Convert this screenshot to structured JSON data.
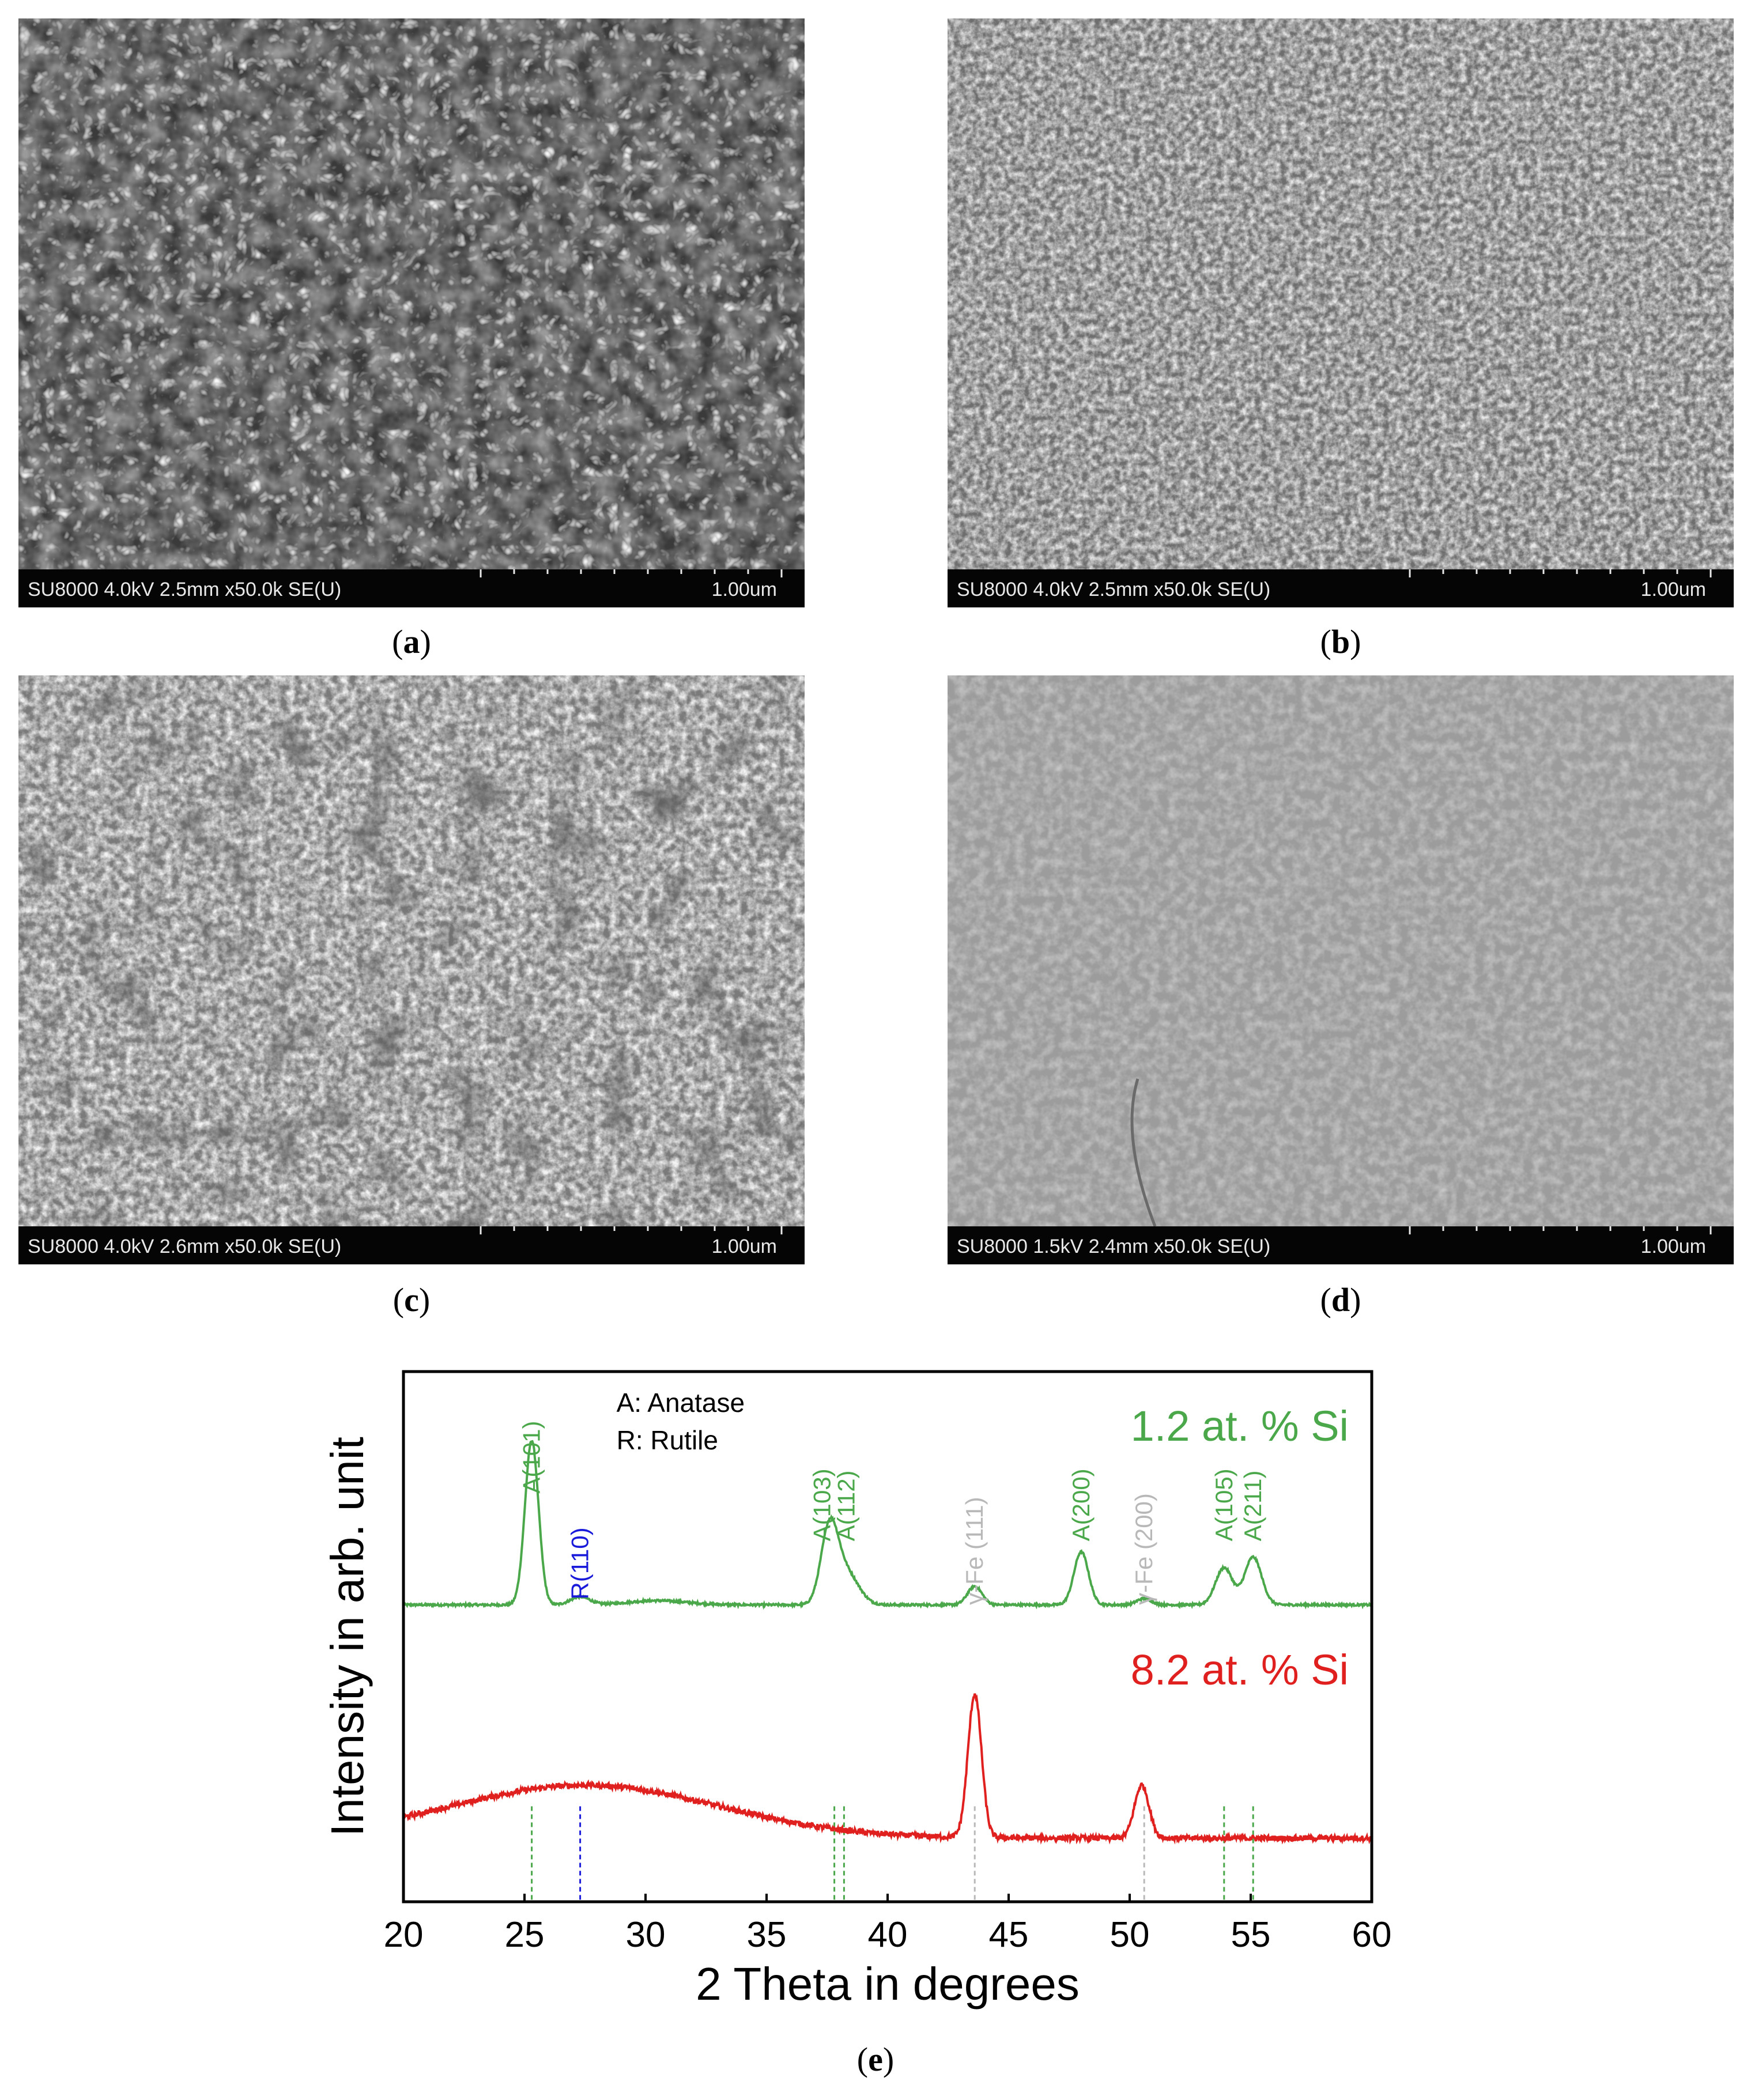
{
  "panels": [
    {
      "id": "a",
      "info": "SU8000 4.0kV 2.5mm x50.0k SE(U)",
      "scale": "1.00um",
      "caption_letter": "a"
    },
    {
      "id": "b",
      "info": "SU8000 4.0kV 2.5mm x50.0k SE(U)",
      "scale": "1.00um",
      "caption_letter": "b"
    },
    {
      "id": "c",
      "info": "SU8000 4.0kV 2.6mm x50.0k SE(U)",
      "scale": "1.00um",
      "caption_letter": "c"
    },
    {
      "id": "d",
      "info": "SU8000 1.5kV 2.4mm x50.0k SE(U)",
      "scale": "1.00um",
      "caption_letter": "d"
    }
  ],
  "caption_e": "e",
  "chart_data": {
    "type": "line",
    "xlabel": "2 Theta in degrees",
    "ylabel": "Intensity in arb. unit",
    "xlim": [
      20,
      60
    ],
    "xticks": [
      20,
      25,
      30,
      35,
      40,
      45,
      50,
      55,
      60
    ],
    "legend_text": [
      "A: Anatase",
      "R: Rutile"
    ],
    "colors": {
      "anatase": "#4aa84a",
      "rutile": "#1a1adb",
      "gamma_fe": "#b8b8b8",
      "series_1": "#4aa84a",
      "series_2": "#e0201e"
    },
    "series": [
      {
        "name": "1.2 at. % Si",
        "color": "#4aa84a",
        "baseline": 0.56,
        "peaks": [
          [
            25.3,
            0.31,
            0.28
          ],
          [
            27.3,
            0.015,
            0.4
          ],
          [
            30.5,
            0.008,
            1.2
          ],
          [
            37.6,
            0.14,
            0.35
          ],
          [
            38.3,
            0.06,
            0.5
          ],
          [
            43.6,
            0.035,
            0.3
          ],
          [
            48.0,
            0.1,
            0.3
          ],
          [
            50.6,
            0.012,
            0.3
          ],
          [
            53.9,
            0.07,
            0.35
          ],
          [
            55.1,
            0.09,
            0.35
          ]
        ]
      },
      {
        "name": "8.2 at. % Si",
        "color": "#e0201e",
        "baseline": 0.12,
        "broad_hump": [
          27.5,
          0.1,
          5.5
        ],
        "peaks": [
          [
            43.6,
            0.27,
            0.28
          ],
          [
            50.5,
            0.1,
            0.3
          ]
        ]
      }
    ],
    "peak_labels": [
      {
        "label": "A(101)",
        "x": 25.3,
        "phase": "anatase"
      },
      {
        "label": "R(110)",
        "x": 27.3,
        "phase": "rutile"
      },
      {
        "label": "A(103)",
        "x": 37.3,
        "phase": "anatase"
      },
      {
        "label": "A(112)",
        "x": 38.3,
        "phase": "anatase"
      },
      {
        "label": "γ-Fe (111)",
        "x": 43.6,
        "phase": "gamma_fe"
      },
      {
        "label": "A(200)",
        "x": 48.0,
        "phase": "anatase"
      },
      {
        "label": "γ-Fe (200)",
        "x": 50.6,
        "phase": "gamma_fe"
      },
      {
        "label": "A(105)",
        "x": 53.9,
        "phase": "anatase"
      },
      {
        "label": "A(211)",
        "x": 55.1,
        "phase": "anatase"
      }
    ],
    "reference_lines": [
      {
        "x": 25.3,
        "phase": "anatase"
      },
      {
        "x": 27.3,
        "phase": "rutile"
      },
      {
        "x": 37.8,
        "phase": "anatase"
      },
      {
        "x": 38.2,
        "phase": "anatase"
      },
      {
        "x": 43.6,
        "phase": "gamma_fe"
      },
      {
        "x": 50.6,
        "phase": "gamma_fe"
      },
      {
        "x": 53.9,
        "phase": "anatase"
      },
      {
        "x": 55.1,
        "phase": "anatase"
      }
    ]
  }
}
